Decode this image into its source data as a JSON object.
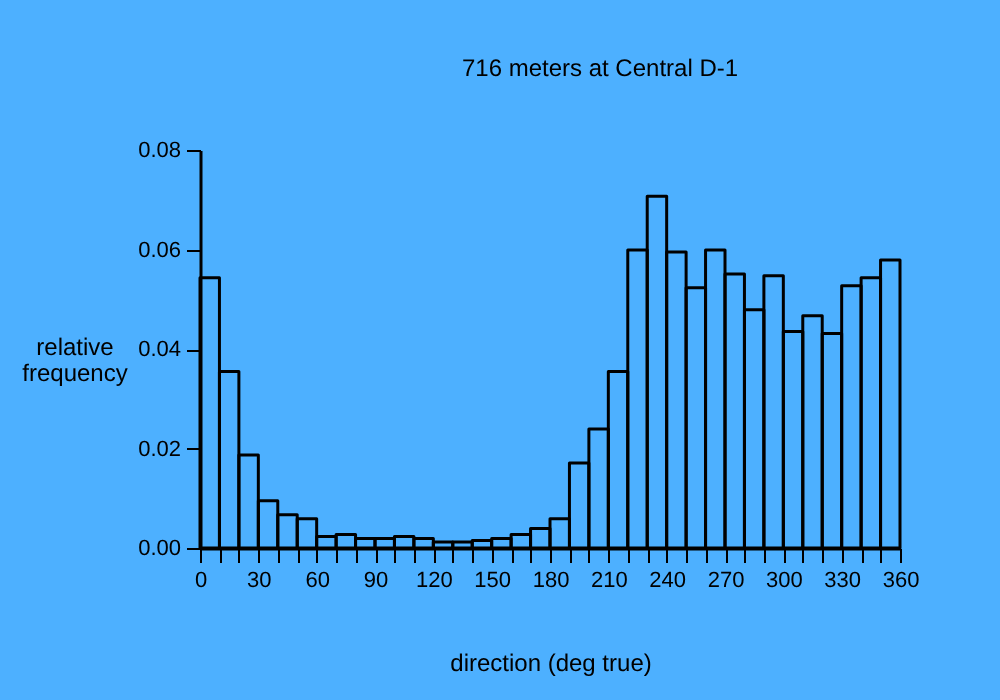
{
  "chart_data": {
    "type": "histogram",
    "title": "716 meters at Central D-1",
    "xlabel": "direction (deg true)",
    "ylabel": "relative frequency",
    "bins": [
      0,
      10,
      20,
      30,
      40,
      50,
      60,
      70,
      80,
      90,
      100,
      110,
      120,
      130,
      140,
      150,
      160,
      170,
      180,
      190,
      200,
      210,
      220,
      230,
      240,
      250,
      260,
      270,
      280,
      290,
      300,
      310,
      320,
      330,
      340,
      350,
      360
    ],
    "values": [
      0.0543,
      0.0355,
      0.0187,
      0.0095,
      0.0067,
      0.0059,
      0.0023,
      0.0027,
      0.0019,
      0.0019,
      0.0023,
      0.0019,
      0.0012,
      0.0012,
      0.0015,
      0.0019,
      0.0027,
      0.0039,
      0.0059,
      0.0171,
      0.0239,
      0.0355,
      0.0599,
      0.0707,
      0.0595,
      0.0523,
      0.0599,
      0.0551,
      0.0479,
      0.0547,
      0.0435,
      0.0467,
      0.0431,
      0.0527,
      0.0543,
      0.0579
    ],
    "color": "#000000",
    "xlim": [
      0,
      360
    ],
    "xticks": [
      0,
      {
        "value": 10,
        "label": null
      },
      {
        "value": 20,
        "label": null
      },
      30,
      {
        "value": 40,
        "label": null
      },
      {
        "value": 50,
        "label": null
      },
      60,
      {
        "value": 70,
        "label": null
      },
      {
        "value": 80,
        "label": null
      },
      90,
      {
        "value": 100,
        "label": null
      },
      {
        "value": 110,
        "label": null
      },
      120,
      {
        "value": 130,
        "label": null
      },
      {
        "value": 140,
        "label": null
      },
      150,
      {
        "value": 160,
        "label": null
      },
      {
        "value": 170,
        "label": null
      },
      180,
      {
        "value": 190,
        "label": null
      },
      {
        "value": 200,
        "label": null
      },
      210,
      {
        "value": 220,
        "label": null
      },
      {
        "value": 230,
        "label": null
      },
      240,
      {
        "value": 250,
        "label": null
      },
      {
        "value": 260,
        "label": null
      },
      270,
      {
        "value": 280,
        "label": null
      },
      {
        "value": 290,
        "label": null
      },
      300,
      {
        "value": 310,
        "label": null
      },
      {
        "value": 320,
        "label": null
      },
      330,
      {
        "value": 340,
        "label": null
      },
      {
        "value": 350,
        "label": null
      },
      360
    ],
    "ylim": [
      0,
      0.08
    ],
    "yticks": [
      {
        "value": 0,
        "label": "0.00"
      },
      0.02,
      0.04,
      0.06,
      0.08
    ],
    "grid": false
  }
}
